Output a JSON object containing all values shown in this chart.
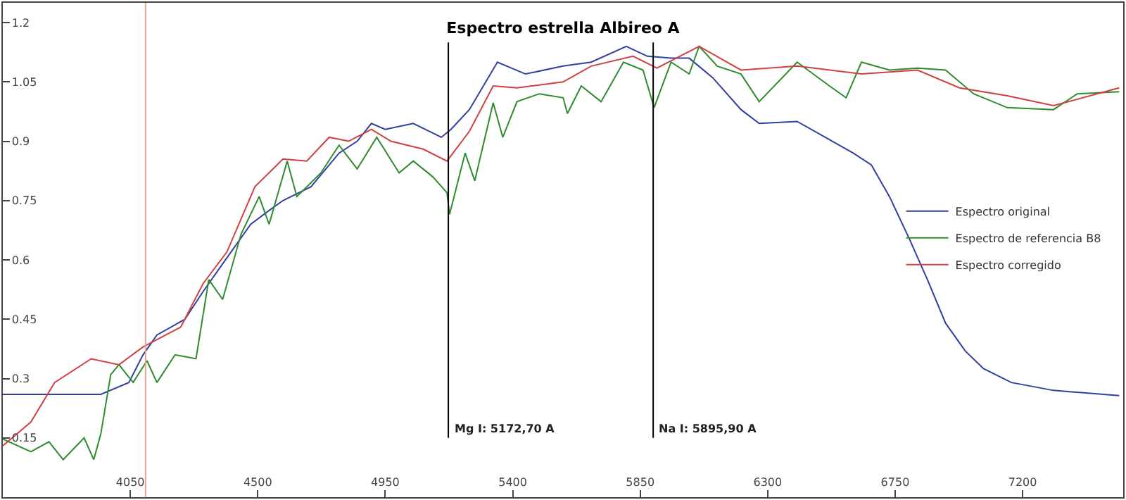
{
  "chart_data": {
    "type": "line",
    "title": "Espectro estrella Albireo A",
    "xlim": [
      3600,
      7555
    ],
    "ylim": [
      0,
      1.25
    ],
    "xticks": [
      4050,
      4500,
      4950,
      5400,
      5850,
      6300,
      6750,
      7200
    ],
    "yticks": [
      0.15,
      0.3,
      0.45,
      0.6,
      0.75,
      0.9,
      1.05,
      1.2
    ],
    "legend": "right",
    "marker": "none",
    "line_style": "solid",
    "series": [
      {
        "name": "Espectro original",
        "color": "#3040a0",
        "x": [
          3600,
          3946,
          4045,
          4095,
          4144,
          4243,
          4307,
          4376,
          4475,
          4540,
          4589,
          4688,
          4787,
          4851,
          4901,
          4950,
          5049,
          5148,
          5182,
          5247,
          5346,
          5445,
          5578,
          5677,
          5801,
          5875,
          5959,
          6023,
          6107,
          6206,
          6270,
          6404,
          6503,
          6602,
          6666,
          6730,
          6799,
          6864,
          6928,
          6997,
          7062,
          7160,
          7309,
          7541
        ],
        "values": [
          0.26,
          0.26,
          0.29,
          0.36,
          0.41,
          0.45,
          0.52,
          0.59,
          0.69,
          0.725,
          0.75,
          0.785,
          0.87,
          0.9,
          0.945,
          0.93,
          0.945,
          0.91,
          0.93,
          0.98,
          1.1,
          1.07,
          1.09,
          1.1,
          1.14,
          1.115,
          1.11,
          1.11,
          1.06,
          0.98,
          0.945,
          0.95,
          0.91,
          0.87,
          0.84,
          0.76,
          0.655,
          0.55,
          0.44,
          0.37,
          0.325,
          0.29,
          0.27,
          0.257
        ]
      },
      {
        "name": "Espectro de referencia B8",
        "color": "#2e8b2e",
        "x": [
          3600,
          3699,
          3763,
          3813,
          3887,
          3921,
          3946,
          3981,
          4010,
          4060,
          4109,
          4144,
          4208,
          4282,
          4327,
          4376,
          4441,
          4505,
          4540,
          4604,
          4638,
          4723,
          4787,
          4851,
          4920,
          4999,
          5049,
          5118,
          5168,
          5177,
          5232,
          5266,
          5331,
          5365,
          5415,
          5494,
          5578,
          5593,
          5642,
          5712,
          5791,
          5860,
          5899,
          5959,
          6023,
          6058,
          6122,
          6206,
          6270,
          6404,
          6518,
          6577,
          6631,
          6730,
          6829,
          6928,
          7027,
          7146,
          7309,
          7393,
          7541
        ],
        "values": [
          0.147,
          0.115,
          0.14,
          0.095,
          0.15,
          0.095,
          0.16,
          0.31,
          0.335,
          0.29,
          0.345,
          0.29,
          0.36,
          0.35,
          0.55,
          0.5,
          0.665,
          0.76,
          0.69,
          0.85,
          0.76,
          0.82,
          0.89,
          0.83,
          0.91,
          0.82,
          0.85,
          0.81,
          0.77,
          0.715,
          0.87,
          0.8,
          0.997,
          0.91,
          1.0,
          1.02,
          1.01,
          0.97,
          1.04,
          1.0,
          1.1,
          1.08,
          0.985,
          1.1,
          1.07,
          1.14,
          1.09,
          1.07,
          1.0,
          1.1,
          1.04,
          1.01,
          1.1,
          1.08,
          1.085,
          1.08,
          1.02,
          0.985,
          0.98,
          1.02,
          1.025
        ]
      },
      {
        "name": "Espectro corregido",
        "color": "#d04040",
        "x": [
          3600,
          3699,
          3783,
          3912,
          4010,
          4095,
          4228,
          4307,
          4391,
          4490,
          4589,
          4673,
          4752,
          4821,
          4901,
          4970,
          5084,
          5168,
          5247,
          5331,
          5415,
          5578,
          5677,
          5825,
          5909,
          6058,
          6206,
          6404,
          6631,
          6829,
          6977,
          7146,
          7309,
          7541
        ],
        "values": [
          0.13,
          0.19,
          0.29,
          0.35,
          0.335,
          0.38,
          0.43,
          0.54,
          0.62,
          0.785,
          0.855,
          0.85,
          0.91,
          0.9,
          0.93,
          0.9,
          0.88,
          0.85,
          0.925,
          1.04,
          1.035,
          1.05,
          1.09,
          1.115,
          1.085,
          1.14,
          1.08,
          1.09,
          1.07,
          1.08,
          1.035,
          1.015,
          0.99,
          1.035
        ]
      }
    ],
    "ref_lines": [
      {
        "axis": "x",
        "value": 4104,
        "color": "#e0a898"
      },
      {
        "axis": "x",
        "value": 5172.7,
        "label": "Mg I: 5172,70 A",
        "color": "#000000"
      },
      {
        "axis": "x",
        "value": 5895.9,
        "label": "Na I: 5895,90 A",
        "color": "#000000"
      }
    ]
  }
}
